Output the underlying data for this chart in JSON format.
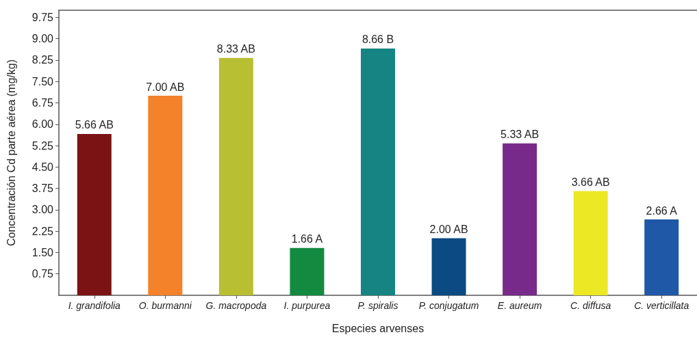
{
  "chart_data": {
    "type": "bar",
    "xlabel": "Especies arvenses",
    "ylabel": "Concentración Cd parte aérea (mg/kg)",
    "categories": [
      "I. grandifolia",
      "O. burmanni",
      "G. macropoda",
      "I. purpurea",
      "P. spiralis",
      "P. conjugatum",
      "E. aureum",
      "C. diffusa",
      "C. verticillata"
    ],
    "values": [
      5.66,
      7.0,
      8.33,
      1.66,
      8.66,
      2.0,
      5.33,
      3.66,
      2.66
    ],
    "colors": [
      "#7b1315",
      "#f3822b",
      "#b9bf32",
      "#138a40",
      "#168482",
      "#0b4a82",
      "#782a8a",
      "#ede824",
      "#1f58a6"
    ],
    "value_labels": [
      "5.66 AB",
      "7.00 AB",
      "8.33 AB",
      "1.66 A",
      "8.66 B",
      "2.00 AB",
      "5.33 AB",
      "3.66 AB",
      "2.66 A"
    ],
    "ylim": [
      0,
      10
    ],
    "yticks": [
      0.75,
      {
        "value": 1.5,
        "label": "1.50"
      },
      2.25,
      {
        "value": 3,
        "label": "3.00"
      },
      3.75,
      {
        "value": 4.5,
        "label": "4.50"
      },
      5.25,
      {
        "value": 6,
        "label": "6.00"
      },
      6.75,
      {
        "value": 7.5,
        "label": "7.50"
      },
      8.25,
      {
        "value": 9,
        "label": "9.00"
      },
      9.75
    ],
    "grid": false
  }
}
